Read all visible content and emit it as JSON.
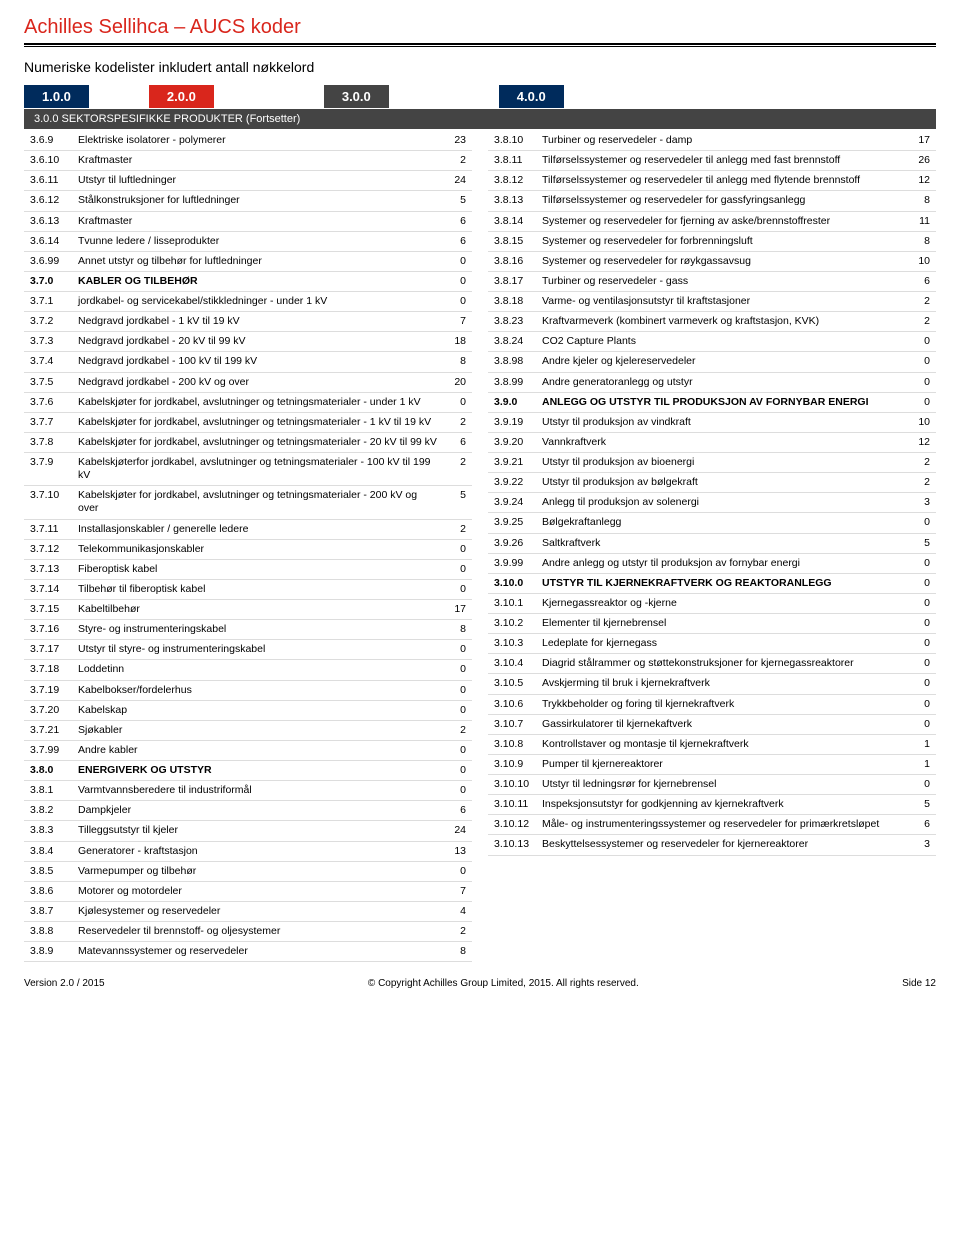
{
  "title": "Achilles Sellihca – AUCS koder",
  "subtitle": "Numeriske kodelister inkludert antall nøkkelord",
  "tabs": [
    {
      "label": "1.0.0",
      "bg": "#002b5c",
      "active": false
    },
    {
      "label": "2.0.0",
      "bg": "#d9261c",
      "active": false
    },
    {
      "label": "3.0.0",
      "bg": "#444444",
      "active": true
    },
    {
      "label": "4.0.0",
      "bg": "#002b5c",
      "active": false
    }
  ],
  "section_header": "3.0.0 SEKTORSPESIFIKKE PRODUKTER (Fortsetter)",
  "left": [
    {
      "code": "3.6.9",
      "label": "Elektriske isolatorer - polymerer",
      "num": "23"
    },
    {
      "code": "3.6.10",
      "label": "Kraftmaster",
      "num": "2"
    },
    {
      "code": "3.6.11",
      "label": "Utstyr til luftledninger",
      "num": "24"
    },
    {
      "code": "3.6.12",
      "label": "Stålkonstruksjoner for luftledninger",
      "num": "5"
    },
    {
      "code": "3.6.13",
      "label": "Kraftmaster",
      "num": "6"
    },
    {
      "code": "3.6.14",
      "label": "Tvunne ledere / lisseprodukter",
      "num": "6"
    },
    {
      "code": "3.6.99",
      "label": "Annet utstyr og tilbehør for luftledninger",
      "num": "0"
    },
    {
      "code": "3.7.0",
      "label": "KABLER OG TILBEHØR",
      "num": "0",
      "bold": true
    },
    {
      "code": "3.7.1",
      "label": "jordkabel- og servicekabel/stikkledninger - under 1 kV",
      "num": "0"
    },
    {
      "code": "3.7.2",
      "label": "Nedgravd jordkabel - 1 kV til 19 kV",
      "num": "7"
    },
    {
      "code": "3.7.3",
      "label": "Nedgravd jordkabel - 20 kV til 99 kV",
      "num": "18"
    },
    {
      "code": "3.7.4",
      "label": "Nedgravd jordkabel - 100 kV til 199 kV",
      "num": "8"
    },
    {
      "code": "3.7.5",
      "label": "Nedgravd jordkabel - 200 kV og over",
      "num": "20"
    },
    {
      "code": "3.7.6",
      "label": "Kabelskjøter for jordkabel, avslutninger og tetningsmaterialer - under 1 kV",
      "num": "0"
    },
    {
      "code": "3.7.7",
      "label": "Kabelskjøter for jordkabel, avslutninger og tetningsmaterialer - 1 kV til 19 kV",
      "num": "2"
    },
    {
      "code": "3.7.8",
      "label": "Kabelskjøter for jordkabel, avslutninger og tetningsmaterialer - 20 kV til 99 kV",
      "num": "6"
    },
    {
      "code": "3.7.9",
      "label": "Kabelskjøterfor jordkabel, avslutninger og tetningsmaterialer - 100 kV til 199 kV",
      "num": "2"
    },
    {
      "code": "3.7.10",
      "label": "Kabelskjøter for jordkabel, avslutninger og tetningsmaterialer - 200 kV og over",
      "num": "5"
    },
    {
      "code": "3.7.11",
      "label": "Installasjonskabler / generelle ledere",
      "num": "2"
    },
    {
      "code": "3.7.12",
      "label": "Telekommunikasjonskabler",
      "num": "0"
    },
    {
      "code": "3.7.13",
      "label": "Fiberoptisk kabel",
      "num": "0"
    },
    {
      "code": "3.7.14",
      "label": "Tilbehør til fiberoptisk kabel",
      "num": "0"
    },
    {
      "code": "3.7.15",
      "label": "Kabeltilbehør",
      "num": "17"
    },
    {
      "code": "3.7.16",
      "label": "Styre- og instrumenteringskabel",
      "num": "8"
    },
    {
      "code": "3.7.17",
      "label": "Utstyr til styre- og instrumenteringskabel",
      "num": "0"
    },
    {
      "code": "3.7.18",
      "label": "Loddetinn",
      "num": "0"
    },
    {
      "code": "3.7.19",
      "label": "Kabelbokser/fordelerhus",
      "num": "0"
    },
    {
      "code": "3.7.20",
      "label": "Kabelskap",
      "num": "0"
    },
    {
      "code": "3.7.21",
      "label": "Sjøkabler",
      "num": "2"
    },
    {
      "code": "3.7.99",
      "label": "Andre kabler",
      "num": "0"
    },
    {
      "code": "3.8.0",
      "label": "ENERGIVERK OG UTSTYR",
      "num": "0",
      "bold": true
    },
    {
      "code": "3.8.1",
      "label": "Varmtvannsberedere til industriformål",
      "num": "0"
    },
    {
      "code": "3.8.2",
      "label": "Dampkjeler",
      "num": "6"
    },
    {
      "code": "3.8.3",
      "label": "Tilleggsutstyr til kjeler",
      "num": "24"
    },
    {
      "code": "3.8.4",
      "label": "Generatorer - kraftstasjon",
      "num": "13"
    },
    {
      "code": "3.8.5",
      "label": "Varmepumper og tilbehør",
      "num": "0"
    },
    {
      "code": "3.8.6",
      "label": "Motorer og motordeler",
      "num": "7"
    },
    {
      "code": "3.8.7",
      "label": "Kjølesystemer og reservedeler",
      "num": "4"
    },
    {
      "code": "3.8.8",
      "label": "Reservedeler til brennstoff- og oljesystemer",
      "num": "2"
    },
    {
      "code": "3.8.9",
      "label": "Matevannssystemer og reservedeler",
      "num": "8"
    }
  ],
  "right": [
    {
      "code": "3.8.10",
      "label": "Turbiner og reservedeler - damp",
      "num": "17"
    },
    {
      "code": "3.8.11",
      "label": "Tilførselssystemer og reservedeler til anlegg med fast brennstoff",
      "num": "26"
    },
    {
      "code": "3.8.12",
      "label": "Tilførselssystemer og reservedeler til anlegg med flytende brennstoff",
      "num": "12"
    },
    {
      "code": "3.8.13",
      "label": "Tilførselssystemer og reservedeler for gassfyringsanlegg",
      "num": "8"
    },
    {
      "code": "3.8.14",
      "label": "Systemer og reservedeler for fjerning av aske/brennstoffrester",
      "num": "11"
    },
    {
      "code": "3.8.15",
      "label": "Systemer og reservedeler for forbrenningsluft",
      "num": "8"
    },
    {
      "code": "3.8.16",
      "label": "Systemer og reservedeler for røykgassavsug",
      "num": "10"
    },
    {
      "code": "3.8.17",
      "label": "Turbiner og reservedeler - gass",
      "num": "6"
    },
    {
      "code": "3.8.18",
      "label": "Varme- og ventilasjonsutstyr til kraftstasjoner",
      "num": "2"
    },
    {
      "code": "3.8.23",
      "label": "Kraftvarmeverk (kombinert varmeverk og kraftstasjon, KVK)",
      "num": "2"
    },
    {
      "code": "3.8.24",
      "label": "CO2 Capture Plants",
      "num": "0"
    },
    {
      "code": "3.8.98",
      "label": "Andre kjeler og kjelereservedeler",
      "num": "0"
    },
    {
      "code": "3.8.99",
      "label": "Andre generatoranlegg og utstyr",
      "num": "0"
    },
    {
      "code": "3.9.0",
      "label": "ANLEGG OG UTSTYR TIL PRODUKSJON AV FORNYBAR ENERGI",
      "num": "0",
      "bold": true
    },
    {
      "code": "3.9.19",
      "label": "Utstyr til produksjon av vindkraft",
      "num": "10"
    },
    {
      "code": "3.9.20",
      "label": "Vannkraftverk",
      "num": "12"
    },
    {
      "code": "3.9.21",
      "label": "Utstyr til produksjon av bioenergi",
      "num": "2"
    },
    {
      "code": "3.9.22",
      "label": "Utstyr til produksjon av bølgekraft",
      "num": "2"
    },
    {
      "code": "3.9.24",
      "label": "Anlegg til produksjon av solenergi",
      "num": "3"
    },
    {
      "code": "3.9.25",
      "label": "Bølgekraftanlegg",
      "num": "0"
    },
    {
      "code": "3.9.26",
      "label": "Saltkraftverk",
      "num": "5"
    },
    {
      "code": "3.9.99",
      "label": "Andre anlegg og utstyr til produksjon av fornybar energi",
      "num": "0"
    },
    {
      "code": "3.10.0",
      "label": "UTSTYR TIL KJERNEKRAFTVERK OG REAKTORANLEGG",
      "num": "0",
      "bold": true
    },
    {
      "code": "3.10.1",
      "label": "Kjernegassreaktor og -kjerne",
      "num": "0"
    },
    {
      "code": "3.10.2",
      "label": "Elementer til kjernebrensel",
      "num": "0"
    },
    {
      "code": "3.10.3",
      "label": "Ledeplate for kjernegass",
      "num": "0"
    },
    {
      "code": "3.10.4",
      "label": "Diagrid stålrammer og støttekonstruksjoner for kjernegassreaktorer",
      "num": "0"
    },
    {
      "code": "3.10.5",
      "label": "Avskjerming til bruk i kjernekraftverk",
      "num": "0"
    },
    {
      "code": "3.10.6",
      "label": "Trykkbeholder og foring til kjernekraftverk",
      "num": "0"
    },
    {
      "code": "3.10.7",
      "label": "Gassirkulatorer til kjernekaftverk",
      "num": "0"
    },
    {
      "code": "3.10.8",
      "label": "Kontrollstaver og montasje til kjernekraftverk",
      "num": "1"
    },
    {
      "code": "3.10.9",
      "label": "Pumper til kjernereaktorer",
      "num": "1"
    },
    {
      "code": "3.10.10",
      "label": "Utstyr til ledningsrør for kjernebrensel",
      "num": "0"
    },
    {
      "code": "3.10.11",
      "label": "Inspeksjonsutstyr for godkjenning av kjernekraftverk",
      "num": "5"
    },
    {
      "code": "3.10.12",
      "label": "Måle- og instrumenteringssystemer og reservedeler for primærkretsløpet",
      "num": "6"
    },
    {
      "code": "3.10.13",
      "label": "Beskyttelsessystemer og reservedeler for kjernereaktorer",
      "num": "3"
    }
  ],
  "footer": {
    "left": "Version 2.0 / 2015",
    "center": "© Copyright Achilles Group Limited, 2015. All rights reserved.",
    "right": "Side 12"
  }
}
